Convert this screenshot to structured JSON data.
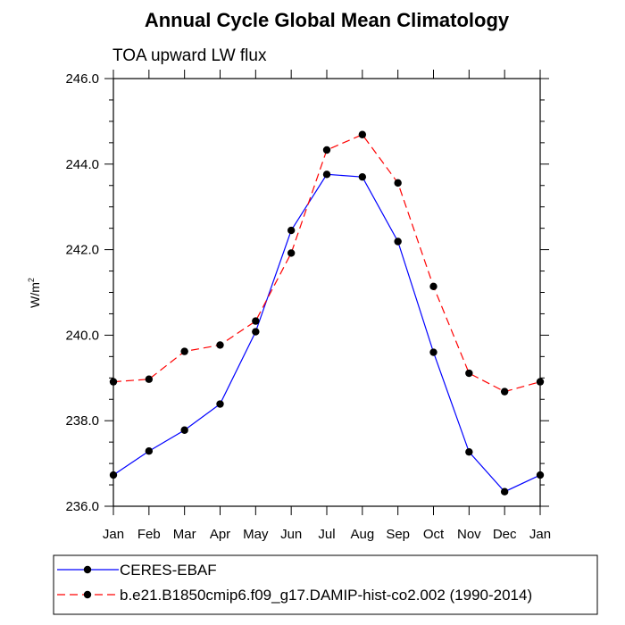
{
  "chart_data": {
    "type": "line",
    "title": "Annual Cycle Global Mean Climatology",
    "subtitle": "TOA upward LW flux",
    "ylabel": "W/m",
    "ylabel_sup": "2",
    "xlabel": "",
    "categories": [
      "Jan",
      "Feb",
      "Mar",
      "Apr",
      "May",
      "Jun",
      "Jul",
      "Aug",
      "Sep",
      "Oct",
      "Nov",
      "Dec",
      "Jan"
    ],
    "ylim": [
      236.0,
      246.0
    ],
    "yticks": [
      "236.0",
      "238.0",
      "240.0",
      "242.0",
      "244.0",
      "246.0"
    ],
    "grid": false,
    "legend_position": "bottom-left",
    "series": [
      {
        "name": "CERES-EBAF",
        "color": "#0000ff",
        "style": "solid",
        "values": [
          236.73,
          237.29,
          237.78,
          238.39,
          240.08,
          242.45,
          243.76,
          243.7,
          242.19,
          239.6,
          237.27,
          236.34,
          236.73
        ]
      },
      {
        "name": "b.e21.B1850cmip6.f09_g17.DAMIP-hist-co2.002 (1990-2014)",
        "color": "#ff0000",
        "style": "dashed",
        "values": [
          238.91,
          238.97,
          239.62,
          239.77,
          240.33,
          241.92,
          244.33,
          244.69,
          243.56,
          241.14,
          239.11,
          238.68,
          238.91
        ]
      }
    ]
  }
}
